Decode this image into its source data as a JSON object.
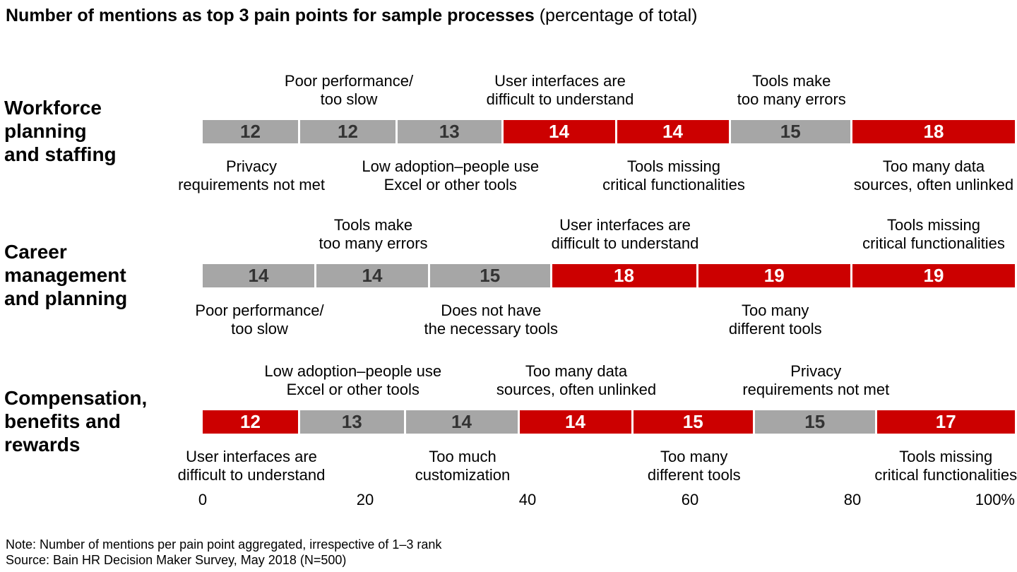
{
  "title": {
    "bold": "Number of mentions as top 3 pain points for sample processes",
    "normal": " (percentage of total)"
  },
  "note": "Note: Number of mentions per pain point aggregated, irrespective of 1–3 rank",
  "source": "Source: Bain HR Decision Maker Survey, May 2018 (N=500)",
  "colors": {
    "red": "#cc0000",
    "gray": "#a6a6a6",
    "value_on_gray": "#333333",
    "value_on_red": "#ffffff",
    "separator": "#ffffff"
  },
  "chart_data": {
    "type": "bar",
    "orientation": "horizontal-stacked",
    "title": "Number of mentions as top 3 pain points for sample processes",
    "subtitle": "(percentage of total)",
    "xlim": [
      0,
      100
    ],
    "x_ticks": [
      "0",
      "20",
      "40",
      "60",
      "80",
      "100%"
    ],
    "x_tick_values": [
      0,
      20,
      40,
      60,
      80,
      100
    ],
    "legend": "off",
    "grid": "off",
    "rows": [
      {
        "category": "Workforce planning and staffing",
        "category_lines": [
          "Workforce",
          "planning",
          "and staffing"
        ],
        "points": [
          {
            "label": "Privacy requirements not met",
            "label_lines": [
              "Privacy",
              "requirements not met"
            ],
            "label_pos": "below",
            "value": 12,
            "color": "gray"
          },
          {
            "label": "Poor performance/too slow",
            "label_lines": [
              "Poor performance/",
              "too slow"
            ],
            "label_pos": "above",
            "value": 12,
            "color": "gray"
          },
          {
            "label": "Low adoption–people use Excel or other tools",
            "label_lines": [
              "Low adoption–people use",
              "Excel or other tools"
            ],
            "label_pos": "below",
            "value": 13,
            "color": "gray"
          },
          {
            "label": "User interfaces are difficult to understand",
            "label_lines": [
              "User interfaces are",
              "difficult to understand"
            ],
            "label_pos": "above",
            "value": 14,
            "color": "red"
          },
          {
            "label": "Tools missing critical functionalities",
            "label_lines": [
              "Tools missing",
              "critical functionalities"
            ],
            "label_pos": "below",
            "value": 14,
            "color": "red"
          },
          {
            "label": "Tools make too many errors",
            "label_lines": [
              "Tools make",
              "too many errors"
            ],
            "label_pos": "above",
            "value": 15,
            "color": "gray"
          },
          {
            "label": "Too many data sources, often unlinked",
            "label_lines": [
              "Too many data",
              "sources, often unlinked"
            ],
            "label_pos": "below",
            "value": 18,
            "color": "red"
          }
        ]
      },
      {
        "category": "Career management and planning",
        "category_lines": [
          "Career",
          "management",
          "and planning"
        ],
        "points": [
          {
            "label": "Poor performance/too slow",
            "label_lines": [
              "Poor performance/",
              "too slow"
            ],
            "label_pos": "below",
            "value": 14,
            "color": "gray"
          },
          {
            "label": "Tools make too many errors",
            "label_lines": [
              "Tools make",
              "too many errors"
            ],
            "label_pos": "above",
            "value": 14,
            "color": "gray"
          },
          {
            "label": "Does not have the necessary tools",
            "label_lines": [
              "Does not have",
              "the necessary tools"
            ],
            "label_pos": "below",
            "value": 15,
            "color": "gray"
          },
          {
            "label": "User interfaces are difficult to understand",
            "label_lines": [
              "User interfaces are",
              "difficult to understand"
            ],
            "label_pos": "above",
            "value": 18,
            "color": "red"
          },
          {
            "label": "Too many different tools",
            "label_lines": [
              "Too many",
              "different tools"
            ],
            "label_pos": "below",
            "value": 19,
            "color": "red"
          },
          {
            "label": "Tools missing critical functionalities",
            "label_lines": [
              "Tools missing",
              "critical functionalities"
            ],
            "label_pos": "above",
            "value": 19,
            "color": "red"
          }
        ]
      },
      {
        "category": "Compensation, benefits and rewards",
        "category_lines": [
          "Compensation,",
          "benefits and",
          "rewards"
        ],
        "points": [
          {
            "label": "User interfaces are difficult to understand",
            "label_lines": [
              "User interfaces are",
              "difficult to understand"
            ],
            "label_pos": "below",
            "value": 12,
            "color": "red"
          },
          {
            "label": "Low adoption–people use Excel or other tools",
            "label_lines": [
              "Low adoption–people use",
              "Excel or other tools"
            ],
            "label_pos": "above",
            "value": 13,
            "color": "gray"
          },
          {
            "label": "Too much customization",
            "label_lines": [
              "Too much",
              "customization"
            ],
            "label_pos": "below",
            "value": 14,
            "color": "gray"
          },
          {
            "label": "Too many data sources, often unlinked",
            "label_lines": [
              "Too many data",
              "sources, often unlinked"
            ],
            "label_pos": "above",
            "value": 14,
            "color": "red"
          },
          {
            "label": "Too many different tools",
            "label_lines": [
              "Too many",
              "different tools"
            ],
            "label_pos": "below",
            "value": 15,
            "color": "red"
          },
          {
            "label": "Privacy requirements not met",
            "label_lines": [
              "Privacy",
              "requirements not met"
            ],
            "label_pos": "above",
            "value": 15,
            "color": "gray"
          },
          {
            "label": "Tools missing critical functionalities",
            "label_lines": [
              "Tools missing",
              "critical functionalities"
            ],
            "label_pos": "below",
            "value": 17,
            "color": "red"
          }
        ]
      }
    ]
  }
}
